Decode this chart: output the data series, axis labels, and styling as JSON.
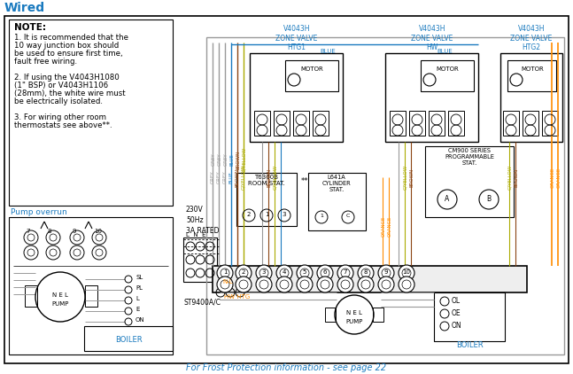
{
  "title": "Wired",
  "title_color": "#1a7abf",
  "title_fontsize": 10,
  "bg_color": "#ffffff",
  "border_color": "#000000",
  "note_text": "NOTE:",
  "note_lines": [
    "1. It is recommended that the",
    "10 way junction box should",
    "be used to ensure first time,",
    "fault free wiring.",
    "",
    "2. If using the V4043H1080",
    "(1\" BSP) or V4043H1106",
    "(28mm), the white wire must",
    "be electrically isolated.",
    "",
    "3. For wiring other room",
    "thermostats see above**."
  ],
  "pump_overrun_label": "Pump overrun",
  "zone_valve_labels": [
    "V4043H\nZONE VALVE\nHTG1",
    "V4043H\nZONE VALVE\nHW",
    "V4043H\nZONE VALVE\nHTG2"
  ],
  "zone_valve_color": "#1a7abf",
  "frost_text": "For Frost Protection information - see page 22",
  "frost_color": "#1a7abf",
  "supply_label": "230V\n50Hz\n3A RATED",
  "lne_label": "L  N  E",
  "wire_colors": {
    "grey": "#999999",
    "blue": "#1a7abf",
    "brown": "#8B4513",
    "gyellow": "#aaaa00",
    "orange": "#FF8C00",
    "black": "#000000",
    "white": "#ffffff"
  },
  "junction_box_numbers": [
    "1",
    "2",
    "3",
    "4",
    "5",
    "6",
    "7",
    "8",
    "9",
    "10"
  ],
  "figsize": [
    6.47,
    4.22
  ],
  "dpi": 100
}
